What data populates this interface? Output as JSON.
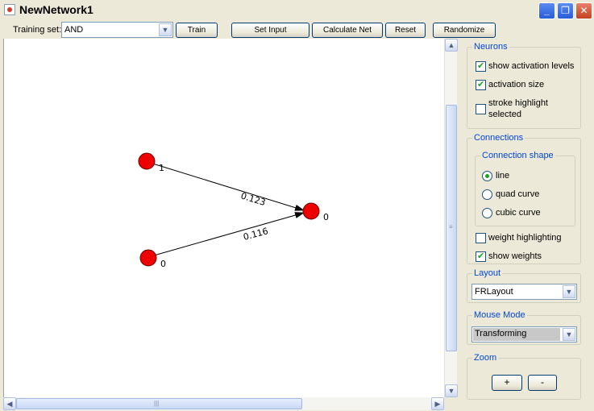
{
  "window": {
    "title": "NewNetwork1"
  },
  "toolbar": {
    "training_set_label": "Training set:",
    "training_set_value": "AND",
    "train_label": "Train",
    "set_input_label": "Set Input",
    "calculate_net_label": "Calculate Net",
    "reset_label": "Reset",
    "randomize_label": "Randomize"
  },
  "network": {
    "neurons": [
      {
        "id": "n1",
        "activation": "1"
      },
      {
        "id": "n2",
        "activation": "0"
      },
      {
        "id": "n3",
        "activation": "0"
      }
    ],
    "connections": [
      {
        "from": "n1",
        "to": "n3",
        "weight": "0.123"
      },
      {
        "from": "n2",
        "to": "n3",
        "weight": "0.116"
      }
    ],
    "neuron_color": "#ee0000",
    "edge_color": "#000000"
  },
  "panel": {
    "neurons": {
      "title": "Neurons",
      "show_activation_levels": {
        "label": "show activation levels",
        "checked": true
      },
      "activation_size": {
        "label": "activation size",
        "checked": true
      },
      "stroke_highlight": {
        "label_line1": "stroke highlight",
        "label_line2": "selected",
        "checked": false
      }
    },
    "connections": {
      "title": "Connections",
      "shape_title": "Connection shape",
      "shape_options": [
        {
          "label": "line",
          "selected": true
        },
        {
          "label": "quad curve",
          "selected": false
        },
        {
          "label": "cubic curve",
          "selected": false
        }
      ],
      "weight_highlighting": {
        "label": "weight highlighting",
        "checked": false
      },
      "show_weights": {
        "label": "show weights",
        "checked": true
      }
    },
    "layout": {
      "title": "Layout",
      "value": "FRLayout"
    },
    "mouse_mode": {
      "title": "Mouse Mode",
      "value": "Transforming"
    },
    "zoom": {
      "title": "Zoom",
      "plus": "+",
      "minus": "-"
    }
  },
  "icons": {
    "app": "java-icon",
    "minimize": "minimize-icon",
    "maximize": "restore-icon",
    "close": "close-icon",
    "dropdown": "chevron-down-icon"
  },
  "colors": {
    "accent": "#0046d5",
    "titlebar_close": "#c5401f"
  }
}
